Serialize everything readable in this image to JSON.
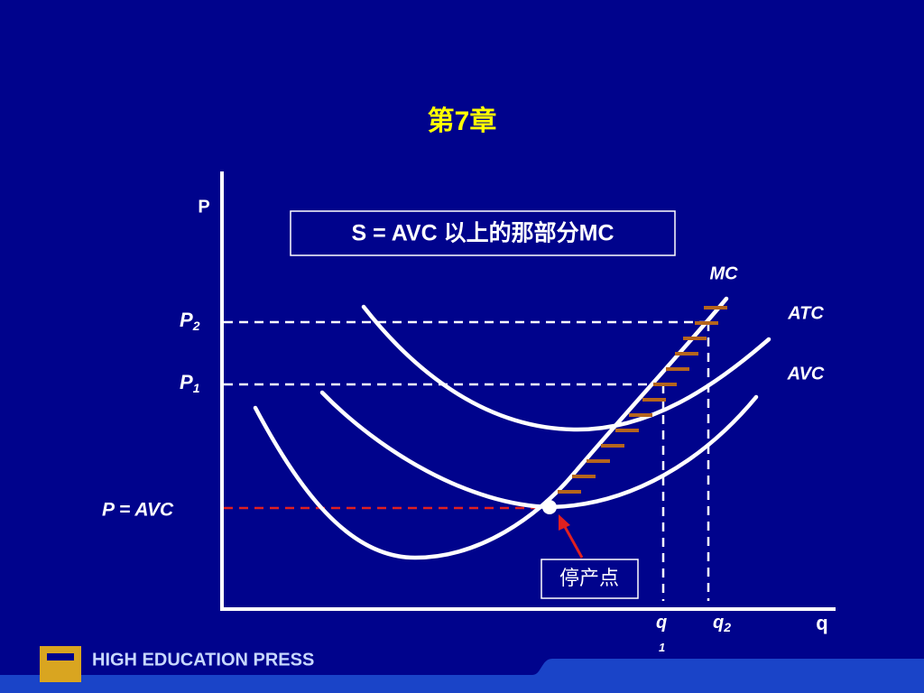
{
  "header": {
    "title": "第7章"
  },
  "note": "S = AVC 以上的那部分MC",
  "axes": {
    "y": "P",
    "x": "q"
  },
  "curves": {
    "mc": "MC",
    "atc": "ATC",
    "avc": "AVC"
  },
  "price_labels": [
    {
      "main": "P",
      "sub": "2"
    },
    {
      "main": "P",
      "sub": "1"
    },
    {
      "main": "P = AVC"
    }
  ],
  "quantity_labels": [
    {
      "main": "q",
      "sub": "1"
    },
    {
      "main": "q",
      "sub": "2"
    }
  ],
  "shutdown_label": "停产点",
  "footer": {
    "publisher": "HIGH EDUCATION PRESS"
  }
}
